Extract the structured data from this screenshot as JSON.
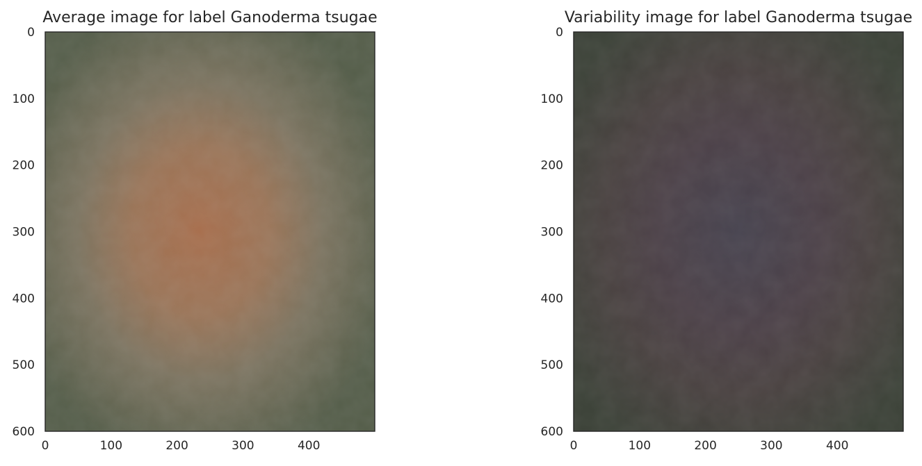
{
  "figure": {
    "panels": [
      {
        "title": "Average image for label Ganoderma tsugae"
      },
      {
        "title": "Variability image for label Ganoderma tsugae"
      }
    ]
  },
  "chart_data": [
    {
      "type": "heatmap",
      "title": "Average image for label Ganoderma tsugae",
      "xlabel": "",
      "ylabel": "",
      "xlim": [
        0,
        500
      ],
      "ylim": [
        600,
        0
      ],
      "x_ticks": [
        0,
        100,
        200,
        300,
        400
      ],
      "y_ticks": [
        0,
        100,
        200,
        300,
        400,
        500,
        600
      ],
      "image_description_colors": {
        "background": "#55604a",
        "center": "#a5714f",
        "mid": "#87795f"
      },
      "grid": false
    },
    {
      "type": "heatmap",
      "title": "Variability image for label Ganoderma tsugae",
      "xlabel": "",
      "ylabel": "",
      "xlim": [
        0,
        500
      ],
      "ylim": [
        600,
        0
      ],
      "x_ticks": [
        0,
        100,
        200,
        300,
        400
      ],
      "y_ticks": [
        0,
        100,
        200,
        300,
        400,
        500,
        600
      ],
      "image_description_colors": {
        "background": "#3e4239",
        "center": "#4a4150",
        "mid": "#4d4245"
      },
      "grid": false
    }
  ]
}
